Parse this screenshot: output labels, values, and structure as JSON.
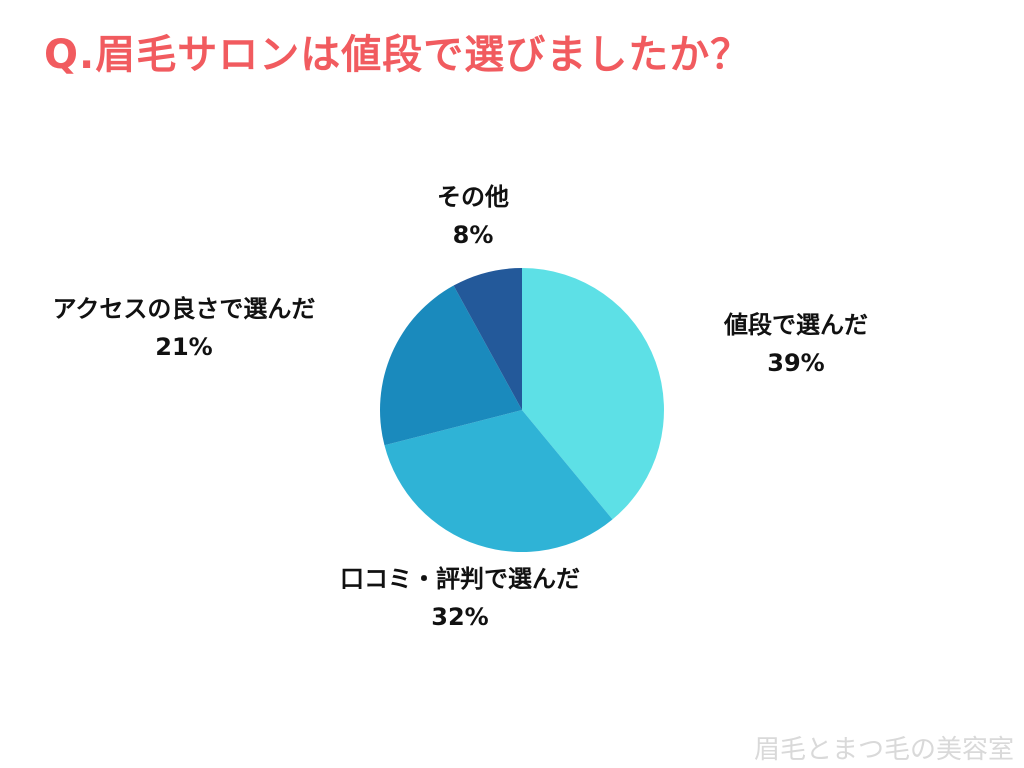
{
  "title": "Q.眉毛サロンは値段で選びましたか？",
  "watermark": "眉毛とまつ毛の美容室",
  "chart_data": {
    "type": "pie",
    "title": "Q.眉毛サロンは値段で選びましたか？",
    "start_angle_deg": 0,
    "direction": "clockwise",
    "slices": [
      {
        "label": "値段で選んだ",
        "value": 39,
        "value_label": "39%",
        "color": "#5de0e6"
      },
      {
        "label": "口コミ・評判で選んだ",
        "value": 32,
        "value_label": "32%",
        "color": "#2fb3d6"
      },
      {
        "label": "アクセスの良さで選んだ",
        "value": 21,
        "value_label": "21%",
        "color": "#1a8abd"
      },
      {
        "label": "その他",
        "value": 8,
        "value_label": "8%",
        "color": "#23599a"
      }
    ]
  }
}
